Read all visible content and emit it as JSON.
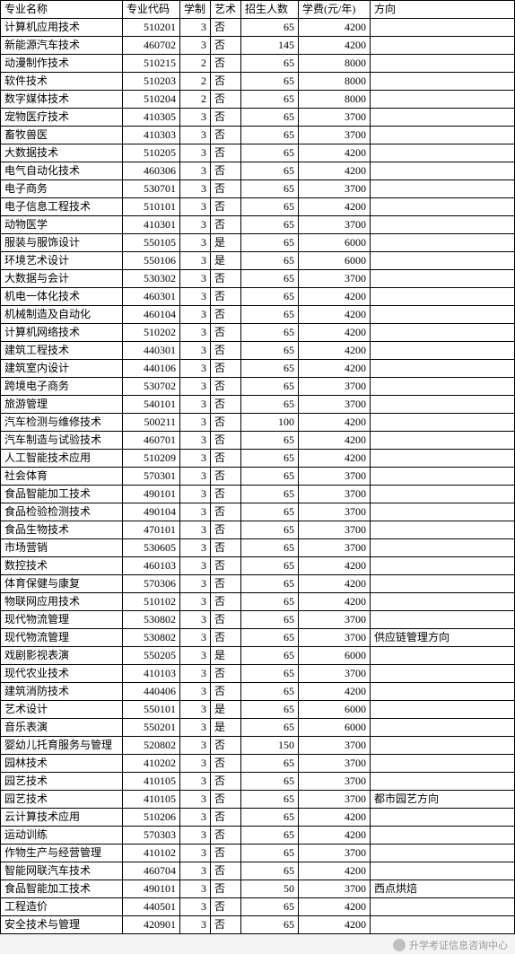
{
  "columns": [
    {
      "key": "name",
      "label": "专业名称",
      "cls": "col-name",
      "align": "txt"
    },
    {
      "key": "code",
      "label": "专业代码",
      "cls": "col-code",
      "align": "num"
    },
    {
      "key": "dur",
      "label": "学制",
      "cls": "col-dur",
      "align": "num"
    },
    {
      "key": "art",
      "label": "艺术",
      "cls": "col-art",
      "align": "txt"
    },
    {
      "key": "enr",
      "label": "招生人数",
      "cls": "col-enr",
      "align": "num"
    },
    {
      "key": "fee",
      "label": "学费(元/年)",
      "cls": "col-fee",
      "align": "num"
    },
    {
      "key": "dir",
      "label": "方向",
      "cls": "col-dir",
      "align": "txt"
    }
  ],
  "rows": [
    [
      "计算机应用技术",
      "510201",
      "3",
      "否",
      "65",
      "4200",
      ""
    ],
    [
      "新能源汽车技术",
      "460702",
      "3",
      "否",
      "145",
      "4200",
      ""
    ],
    [
      "动漫制作技术",
      "510215",
      "2",
      "否",
      "65",
      "8000",
      ""
    ],
    [
      "软件技术",
      "510203",
      "2",
      "否",
      "65",
      "8000",
      ""
    ],
    [
      "数字媒体技术",
      "510204",
      "2",
      "否",
      "65",
      "8000",
      ""
    ],
    [
      "宠物医疗技术",
      "410305",
      "3",
      "否",
      "65",
      "3700",
      ""
    ],
    [
      "畜牧兽医",
      "410303",
      "3",
      "否",
      "65",
      "3700",
      ""
    ],
    [
      "大数据技术",
      "510205",
      "3",
      "否",
      "65",
      "4200",
      ""
    ],
    [
      "电气自动化技术",
      "460306",
      "3",
      "否",
      "65",
      "4200",
      ""
    ],
    [
      "电子商务",
      "530701",
      "3",
      "否",
      "65",
      "3700",
      ""
    ],
    [
      "电子信息工程技术",
      "510101",
      "3",
      "否",
      "65",
      "4200",
      ""
    ],
    [
      "动物医学",
      "410301",
      "3",
      "否",
      "65",
      "3700",
      ""
    ],
    [
      "服装与服饰设计",
      "550105",
      "3",
      "是",
      "65",
      "6000",
      ""
    ],
    [
      "环境艺术设计",
      "550106",
      "3",
      "是",
      "65",
      "6000",
      ""
    ],
    [
      "大数据与会计",
      "530302",
      "3",
      "否",
      "65",
      "3700",
      ""
    ],
    [
      "机电一体化技术",
      "460301",
      "3",
      "否",
      "65",
      "4200",
      ""
    ],
    [
      "机械制造及自动化",
      "460104",
      "3",
      "否",
      "65",
      "4200",
      ""
    ],
    [
      "计算机网络技术",
      "510202",
      "3",
      "否",
      "65",
      "4200",
      ""
    ],
    [
      "建筑工程技术",
      "440301",
      "3",
      "否",
      "65",
      "4200",
      ""
    ],
    [
      "建筑室内设计",
      "440106",
      "3",
      "否",
      "65",
      "4200",
      ""
    ],
    [
      "跨境电子商务",
      "530702",
      "3",
      "否",
      "65",
      "3700",
      ""
    ],
    [
      "旅游管理",
      "540101",
      "3",
      "否",
      "65",
      "3700",
      ""
    ],
    [
      "汽车检测与维修技术",
      "500211",
      "3",
      "否",
      "100",
      "4200",
      ""
    ],
    [
      "汽车制造与试验技术",
      "460701",
      "3",
      "否",
      "65",
      "4200",
      ""
    ],
    [
      "人工智能技术应用",
      "510209",
      "3",
      "否",
      "65",
      "4200",
      ""
    ],
    [
      "社会体育",
      "570301",
      "3",
      "否",
      "65",
      "3700",
      ""
    ],
    [
      "食品智能加工技术",
      "490101",
      "3",
      "否",
      "65",
      "3700",
      ""
    ],
    [
      "食品检验检测技术",
      "490104",
      "3",
      "否",
      "65",
      "3700",
      ""
    ],
    [
      "食品生物技术",
      "470101",
      "3",
      "否",
      "65",
      "3700",
      ""
    ],
    [
      "市场营销",
      "530605",
      "3",
      "否",
      "65",
      "3700",
      ""
    ],
    [
      "数控技术",
      "460103",
      "3",
      "否",
      "65",
      "4200",
      ""
    ],
    [
      "体育保健与康复",
      "570306",
      "3",
      "否",
      "65",
      "4200",
      ""
    ],
    [
      "物联网应用技术",
      "510102",
      "3",
      "否",
      "65",
      "4200",
      ""
    ],
    [
      "现代物流管理",
      "530802",
      "3",
      "否",
      "65",
      "3700",
      ""
    ],
    [
      "现代物流管理",
      "530802",
      "3",
      "否",
      "65",
      "3700",
      "供应链管理方向"
    ],
    [
      "戏剧影视表演",
      "550205",
      "3",
      "是",
      "65",
      "6000",
      ""
    ],
    [
      "现代农业技术",
      "410103",
      "3",
      "否",
      "65",
      "3700",
      ""
    ],
    [
      "建筑消防技术",
      "440406",
      "3",
      "否",
      "65",
      "4200",
      ""
    ],
    [
      "艺术设计",
      "550101",
      "3",
      "是",
      "65",
      "6000",
      ""
    ],
    [
      "音乐表演",
      "550201",
      "3",
      "是",
      "65",
      "6000",
      ""
    ],
    [
      "婴幼儿托育服务与管理",
      "520802",
      "3",
      "否",
      "150",
      "3700",
      ""
    ],
    [
      "园林技术",
      "410202",
      "3",
      "否",
      "65",
      "3700",
      ""
    ],
    [
      "园艺技术",
      "410105",
      "3",
      "否",
      "65",
      "3700",
      ""
    ],
    [
      "园艺技术",
      "410105",
      "3",
      "否",
      "65",
      "3700",
      "都市园艺方向"
    ],
    [
      "云计算技术应用",
      "510206",
      "3",
      "否",
      "65",
      "4200",
      ""
    ],
    [
      "运动训练",
      "570303",
      "3",
      "否",
      "65",
      "4200",
      ""
    ],
    [
      "作物生产与经营管理",
      "410102",
      "3",
      "否",
      "65",
      "3700",
      ""
    ],
    [
      "智能网联汽车技术",
      "460704",
      "3",
      "否",
      "65",
      "4200",
      ""
    ],
    [
      "食品智能加工技术",
      "490101",
      "3",
      "否",
      "50",
      "3700",
      "西点烘焙"
    ],
    [
      "工程造价",
      "440501",
      "3",
      "否",
      "65",
      "4200",
      ""
    ],
    [
      "安全技术与管理",
      "420901",
      "3",
      "否",
      "65",
      "4200",
      ""
    ]
  ],
  "footer": {
    "source": "升学考证信息咨询中心"
  }
}
